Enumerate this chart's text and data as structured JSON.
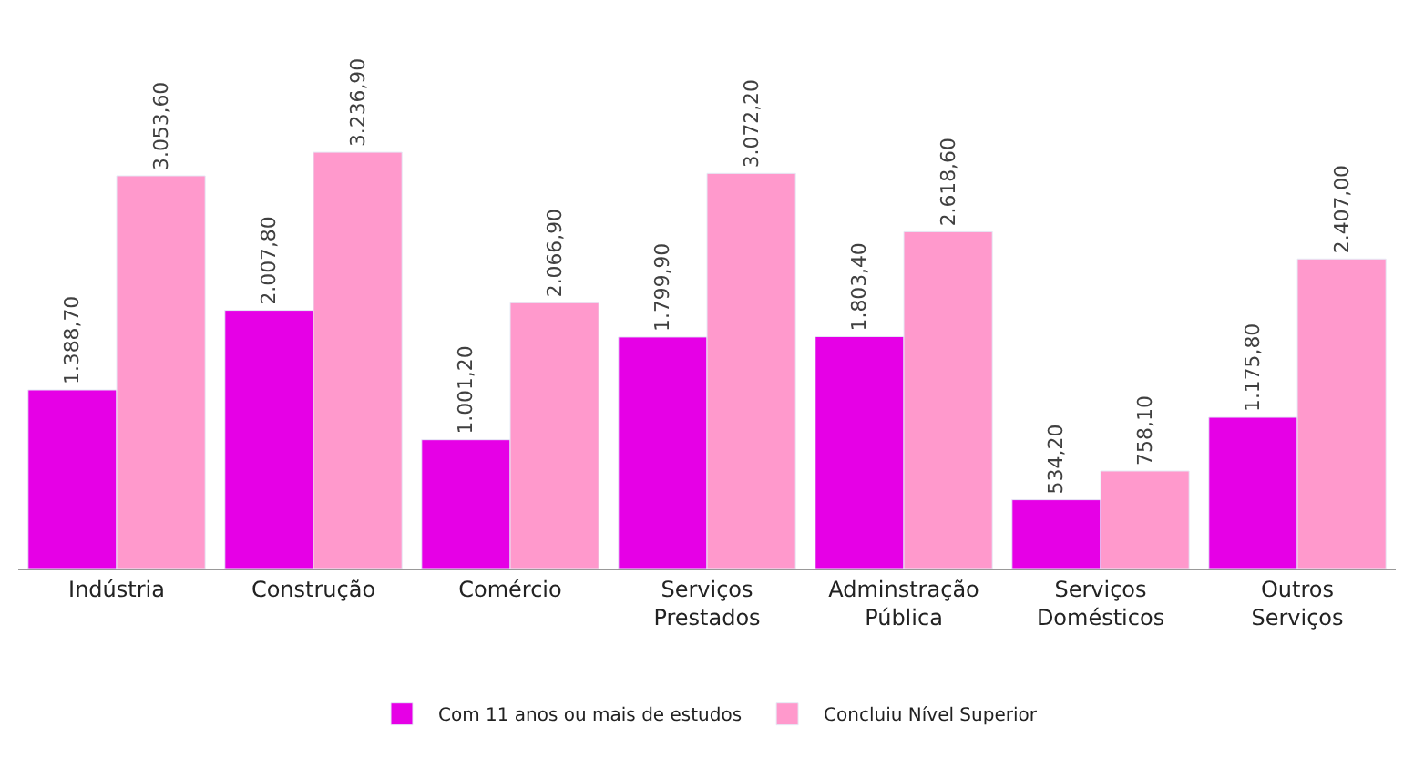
{
  "chart_data": {
    "type": "bar",
    "categories": [
      "Indústria",
      "Construção",
      "Comércio",
      "Serviços Prestados",
      "Adminstração Pública",
      "Serviços Domésticos",
      "Outros Serviços"
    ],
    "series": [
      {
        "name": "Com 11 anos ou mais de estudos",
        "color": "#e600e6",
        "values": [
          1388.7,
          2007.8,
          1001.2,
          1799.9,
          1803.4,
          534.2,
          1175.8
        ],
        "value_labels": [
          "1.388,70",
          "2.007,80",
          "1.001,20",
          "1.799,90",
          "1.803,40",
          "534,20",
          "1.175,80"
        ]
      },
      {
        "name": "Concluiu Nível Superior",
        "color": "#ff99cc",
        "values": [
          3053.6,
          3236.9,
          2066.9,
          3072.2,
          2618.6,
          758.1,
          2407.0
        ],
        "value_labels": [
          "3.053,60",
          "3.236,90",
          "2.066,90",
          "3.072,20",
          "2.618,60",
          "758,10",
          "2.407,00"
        ]
      }
    ],
    "legend": "bottom"
  }
}
